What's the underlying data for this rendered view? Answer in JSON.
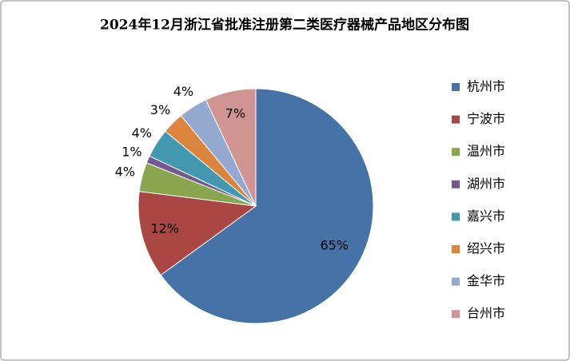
{
  "chart_data": {
    "type": "pie",
    "title": "2024年12月浙江省批准注册第二类医疗器械产品地区分布图",
    "categories": [
      "杭州市",
      "宁波市",
      "温州市",
      "湖州市",
      "嘉兴市",
      "绍兴市",
      "金华市",
      "台州市"
    ],
    "values": [
      65,
      12,
      4,
      1,
      4,
      3,
      4,
      7
    ],
    "value_labels": [
      "65%",
      "12%",
      "4%",
      "1%",
      "4%",
      "3%",
      "4%",
      "7%"
    ],
    "colors": [
      "#4572A7",
      "#AA4643",
      "#89A54E",
      "#71588F",
      "#4198AF",
      "#DB843D",
      "#93A9CF",
      "#D09493"
    ],
    "legend": "right"
  }
}
